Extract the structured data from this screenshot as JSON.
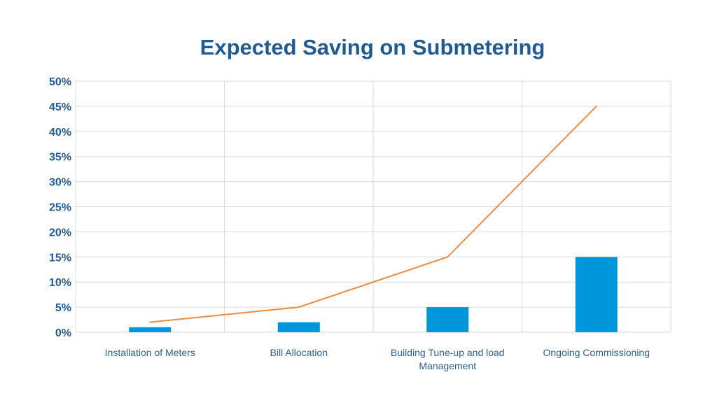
{
  "chart_data": {
    "type": "bar",
    "title": "Expected Saving on Submetering",
    "categories": [
      [
        "Installation of Meters"
      ],
      [
        "Bill Allocation"
      ],
      [
        "Building Tune-up and load",
        "Management"
      ],
      [
        "Ongoing Commissioning"
      ]
    ],
    "series": [
      {
        "type": "bar",
        "values": [
          1,
          2,
          5,
          15
        ]
      },
      {
        "type": "line",
        "values": [
          2,
          5,
          15,
          45
        ]
      }
    ],
    "ylim": [
      0,
      50
    ],
    "yticks": [
      "0%",
      "5%",
      "10%",
      "15%",
      "20%",
      "25%",
      "30%",
      "35%",
      "40%",
      "45%",
      "50%"
    ],
    "grid": true,
    "colors": {
      "bar": "#0096dc",
      "line": "#f28a3c",
      "grid": "#d9d9d9",
      "text": "#1f5a97"
    }
  }
}
